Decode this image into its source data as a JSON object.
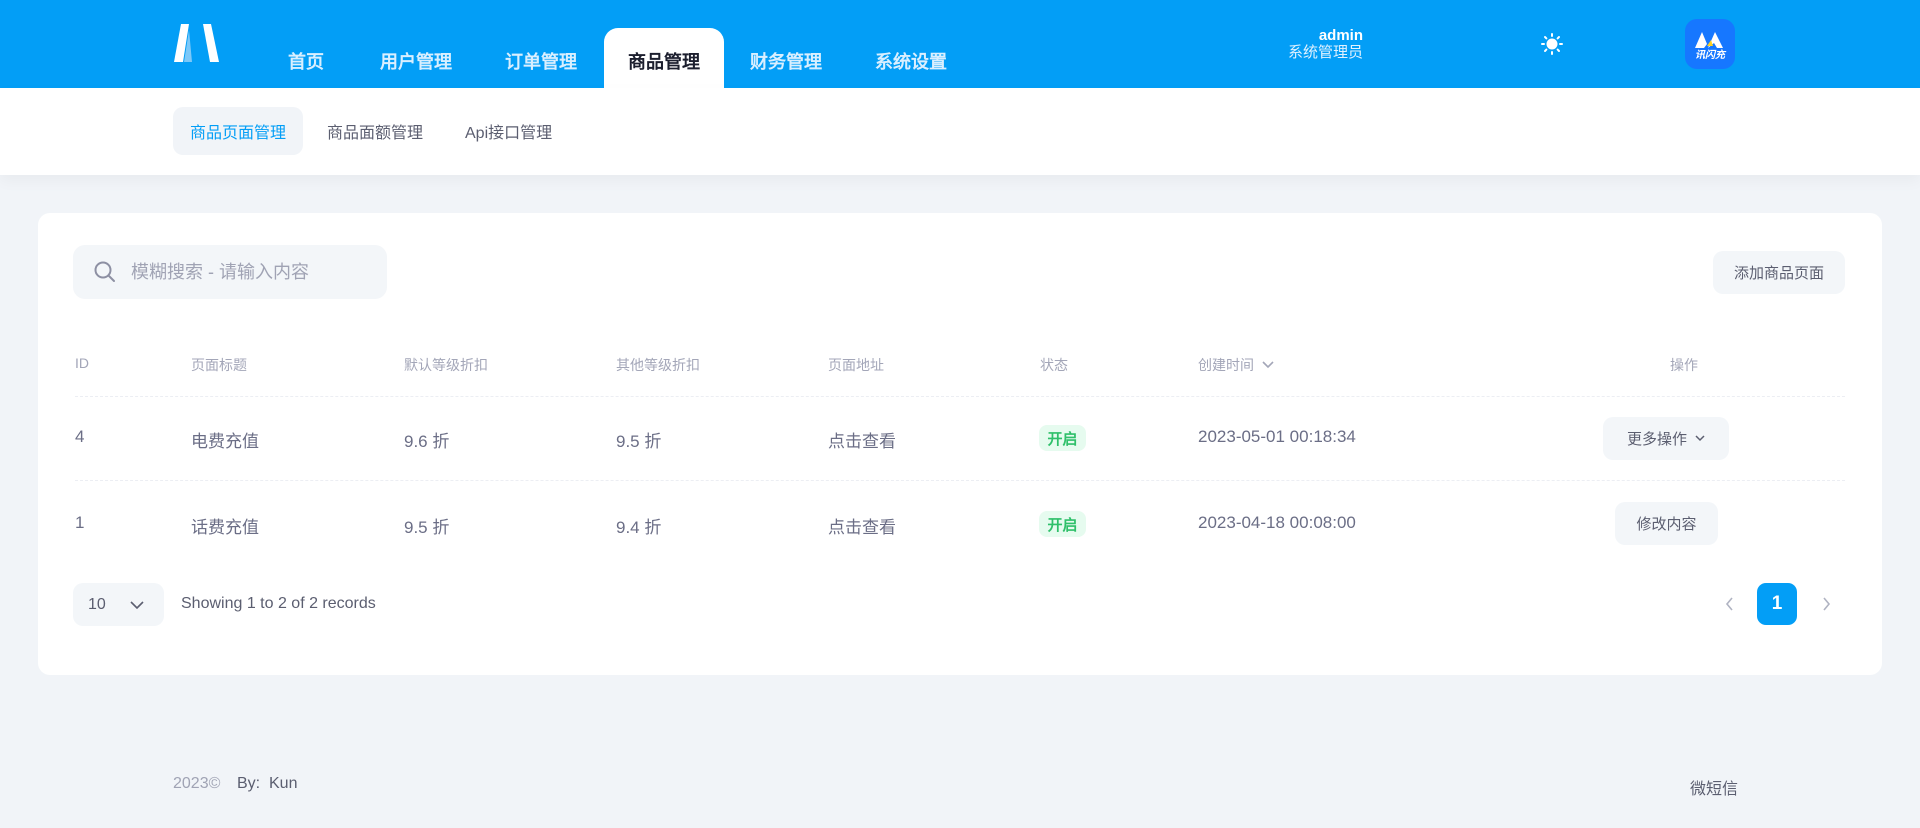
{
  "header": {
    "nav": [
      "首页",
      "用户管理",
      "订单管理",
      "商品管理",
      "财务管理",
      "系统设置"
    ],
    "active_nav": 3,
    "user": {
      "name": "admin",
      "role": "系统管理员"
    },
    "avatar_logo_text": "讯闪充",
    "theme_icon": "sun-icon"
  },
  "subnav": {
    "items": [
      "商品页面管理",
      "商品面额管理",
      "Api接口管理"
    ],
    "active": 0
  },
  "toolbar": {
    "search_placeholder": "模糊搜索 - 请输入内容",
    "add_label": "添加商品页面"
  },
  "table": {
    "columns": [
      "ID",
      "页面标题",
      "默认等级折扣",
      "其他等级折扣",
      "页面地址",
      "状态",
      "创建时间",
      "操作"
    ],
    "rows": [
      {
        "id": "4",
        "title": "电费充值",
        "default_discount": "9.6 折",
        "other_discount": "9.5 折",
        "url": "点击查看",
        "status": "开启",
        "created": "2023-05-01 00:18:34",
        "action": "更多操作"
      },
      {
        "id": "1",
        "title": "话费充值",
        "default_discount": "9.5 折",
        "other_discount": "9.4 折",
        "url": "点击查看",
        "status": "开启",
        "created": "2023-04-18 00:08:00",
        "action": "修改内容"
      }
    ]
  },
  "pagination": {
    "page_size": "10",
    "summary": "Showing 1 to 2 of 2 records",
    "current_page": "1"
  },
  "footer": {
    "year": "2023©",
    "by": "By:  Kun",
    "right": "微短信"
  },
  "colors": {
    "primary": "#039ef6",
    "success": "#2fc06a",
    "background": "#f1f4f8"
  }
}
